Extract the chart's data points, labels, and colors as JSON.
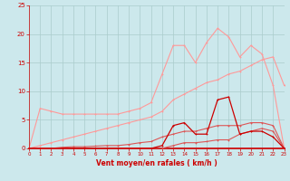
{
  "x": [
    0,
    1,
    2,
    3,
    4,
    5,
    6,
    7,
    8,
    9,
    10,
    11,
    12,
    13,
    14,
    15,
    16,
    17,
    18,
    19,
    20,
    21,
    22,
    23
  ],
  "line_peaked_light": [
    0,
    7,
    6.5,
    6,
    6,
    6,
    6,
    6,
    6,
    6.5,
    7,
    8,
    13,
    18,
    18,
    15,
    18.5,
    21,
    19.5,
    16,
    18,
    16.5,
    11,
    0
  ],
  "line_diag_light": [
    0,
    0.5,
    1.0,
    1.5,
    2.0,
    2.5,
    3.0,
    3.5,
    4.0,
    4.5,
    5.0,
    5.5,
    6.5,
    8.5,
    9.5,
    10.5,
    11.5,
    12.0,
    13.0,
    13.5,
    14.5,
    15.5,
    16.0,
    11.0
  ],
  "line_dark_peaked": [
    0,
    0,
    0,
    0,
    0,
    0,
    0,
    0,
    0,
    0,
    0,
    0,
    0.5,
    4,
    4.5,
    2.5,
    2.5,
    8.5,
    9,
    2.5,
    3,
    3,
    2,
    0
  ],
  "line_med1": [
    0,
    0,
    0,
    0.2,
    0.3,
    0.3,
    0.4,
    0.5,
    0.5,
    0.7,
    1,
    1.2,
    2,
    2.5,
    3,
    3,
    3.5,
    4,
    4,
    4,
    4.5,
    4.5,
    4,
    0
  ],
  "line_med2": [
    0,
    0,
    0,
    0,
    0,
    0,
    0,
    0,
    0,
    0,
    0,
    0,
    0,
    0.5,
    1,
    1,
    1.2,
    1.5,
    1.5,
    2.5,
    3,
    3.5,
    3,
    0
  ],
  "bg_color": "#cce8ec",
  "grid_color": "#aacccc",
  "line_color_dark": "#cc0000",
  "line_color_medium": "#dd5555",
  "line_color_light": "#ff9999",
  "xlabel": "Vent moyen/en rafales ( km/h )",
  "xlim": [
    0,
    23
  ],
  "ylim": [
    0,
    25
  ],
  "yticks": [
    0,
    5,
    10,
    15,
    20,
    25
  ],
  "xticks": [
    0,
    1,
    2,
    3,
    4,
    5,
    6,
    7,
    8,
    9,
    10,
    11,
    12,
    13,
    14,
    15,
    16,
    17,
    18,
    19,
    20,
    21,
    22,
    23
  ]
}
